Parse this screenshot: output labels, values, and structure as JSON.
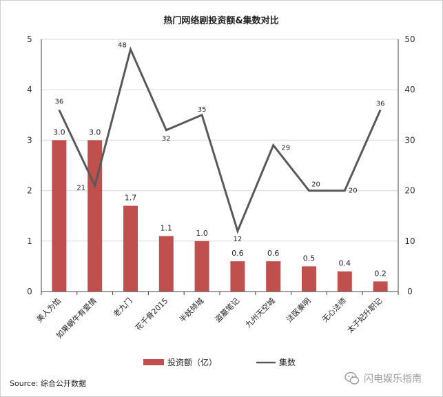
{
  "chart_data": {
    "type": "bar+line",
    "title": "热门网络剧投资额&集数对比",
    "categories": [
      "美人为馅",
      "如果蜗牛有爱情",
      "老九门",
      "花千骨2015",
      "半妖倾城",
      "盗墓笔记",
      "九州天空城",
      "法医秦明",
      "无心法师",
      "太子妃升职记"
    ],
    "series": [
      {
        "name": "投资额（亿）",
        "kind": "bar",
        "axis": "left",
        "values": [
          3.0,
          3.0,
          1.7,
          1.1,
          1.0,
          0.6,
          0.6,
          0.5,
          0.4,
          0.2
        ],
        "labels": [
          "3.0",
          "3.0",
          "1.7",
          "1.1",
          "1.0",
          "0.6",
          "0.6",
          "0.5",
          "0.4",
          "0.2"
        ],
        "color": "#c0504d"
      },
      {
        "name": "集数",
        "kind": "line",
        "axis": "right",
        "values": [
          36,
          21,
          48,
          32,
          35,
          12,
          29,
          20,
          20,
          36
        ],
        "color": "#595959"
      }
    ],
    "y_left": {
      "min": 0,
      "max": 5,
      "ticks": [
        "0",
        "1",
        "2",
        "3",
        "4",
        "5"
      ]
    },
    "y_right": {
      "min": 0,
      "max": 50,
      "ticks": [
        "0",
        "10",
        "20",
        "30",
        "40",
        "50"
      ]
    },
    "grid": true,
    "legend": "bottom"
  },
  "footer": {
    "source": "Source: 综合公开数据",
    "watermark": "闪电娱乐指南"
  },
  "colors": {
    "bar": "#c0504d",
    "line": "#595959",
    "grid": "#d9d9d9"
  }
}
